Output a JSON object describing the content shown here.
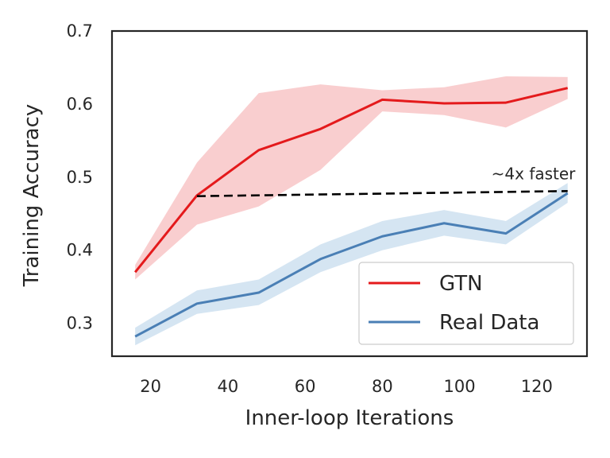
{
  "chart_data": {
    "type": "line",
    "xlabel": "Inner-loop Iterations",
    "ylabel": "Training Accuracy",
    "xlim": [
      10,
      133
    ],
    "ylim": [
      0.255,
      0.7
    ],
    "xticks": [
      20,
      40,
      60,
      80,
      100,
      120
    ],
    "yticks": [
      0.3,
      0.4,
      0.5,
      0.6,
      0.7
    ],
    "xtick_labels": [
      "20",
      "40",
      "60",
      "80",
      "100",
      "120"
    ],
    "ytick_labels": [
      "0.3",
      "0.4",
      "0.5",
      "0.6",
      "0.7"
    ],
    "grid": false,
    "legend_position": "lower-right",
    "series": [
      {
        "name": "GTN",
        "color": "#e41a1c",
        "band_color": "#f4a6a7",
        "x": [
          16,
          32,
          48,
          64,
          80,
          96,
          112,
          128
        ],
        "y": [
          0.37,
          0.475,
          0.537,
          0.566,
          0.606,
          0.601,
          0.602,
          0.622
        ],
        "lower": [
          0.36,
          0.435,
          0.46,
          0.51,
          0.59,
          0.585,
          0.568,
          0.607
        ],
        "upper": [
          0.38,
          0.52,
          0.615,
          0.627,
          0.619,
          0.623,
          0.638,
          0.637
        ]
      },
      {
        "name": "Real Data",
        "color": "#4a7fb5",
        "band_color": "#b3cfe8",
        "x": [
          16,
          32,
          48,
          64,
          80,
          96,
          112,
          128
        ],
        "y": [
          0.282,
          0.327,
          0.342,
          0.388,
          0.419,
          0.437,
          0.423,
          0.478
        ],
        "lower": [
          0.27,
          0.313,
          0.325,
          0.37,
          0.4,
          0.42,
          0.408,
          0.465
        ],
        "upper": [
          0.294,
          0.345,
          0.36,
          0.408,
          0.44,
          0.455,
          0.44,
          0.492
        ]
      }
    ],
    "annotations": [
      {
        "text": "~4x faster",
        "line": {
          "x": [
            32,
            128
          ],
          "y": [
            0.474,
            0.481
          ]
        },
        "text_anchor": {
          "x": 130,
          "y": 0.497
        },
        "style": "dashed",
        "color": "#000000"
      }
    ]
  }
}
